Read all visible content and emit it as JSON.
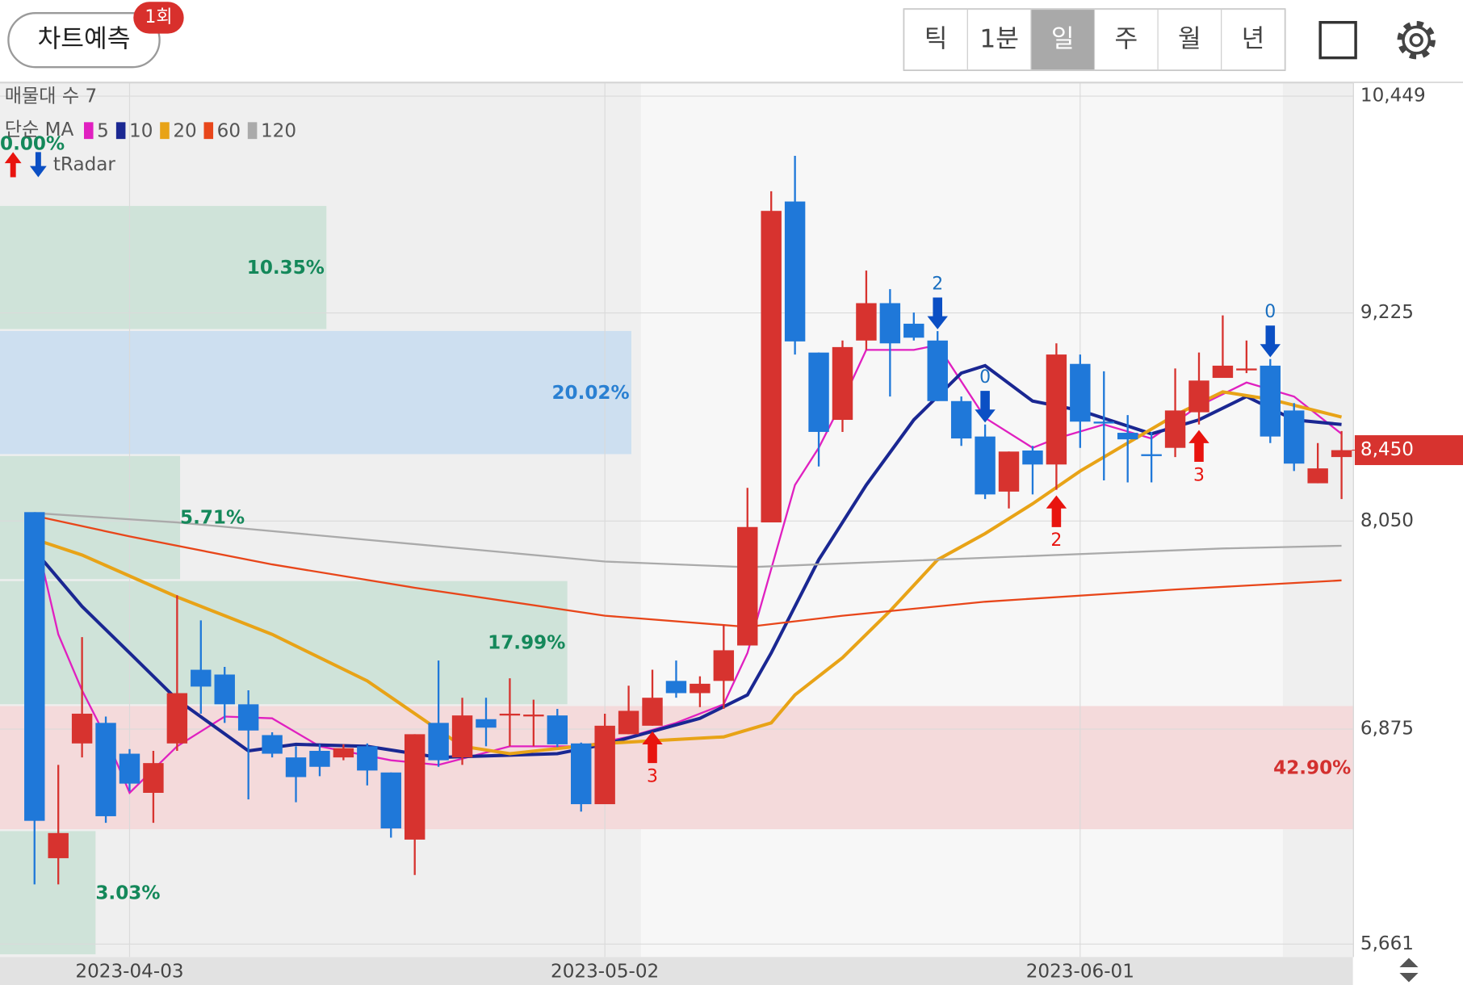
{
  "header": {
    "button": "차트예측",
    "badge": "1회",
    "tabs": [
      "틱",
      "1분",
      "일",
      "주",
      "월",
      "년"
    ],
    "selected_tab": "일"
  },
  "chart_data": {
    "type": "candlestick",
    "categories": [
      null,
      null,
      null,
      null,
      "2023-04-03",
      null,
      null,
      null,
      null,
      null,
      null,
      null,
      null,
      null,
      null,
      null,
      null,
      null,
      null,
      null,
      null,
      null,
      null,
      null,
      "2023-05-02",
      null,
      null,
      null,
      null,
      null,
      null,
      null,
      null,
      null,
      null,
      null,
      null,
      null,
      null,
      null,
      null,
      null,
      null,
      null,
      "2023-06-01",
      null,
      null,
      null,
      null,
      null,
      null,
      null,
      null,
      null,
      null,
      null
    ],
    "open": [
      8100,
      6146,
      6794,
      6910,
      6736,
      6515,
      6794,
      7210,
      7183,
      7015,
      6841,
      6715,
      6752,
      6715,
      6778,
      6630,
      6251,
      6910,
      6715,
      6931,
      6957,
      6952,
      6952,
      6794,
      6451,
      6846,
      6894,
      7147,
      7078,
      7147,
      7347,
      8042,
      9854,
      9001,
      8621,
      9069,
      9280,
      9164,
      9069,
      8727,
      8527,
      8216,
      8448,
      8369,
      8937,
      8611,
      8548,
      8427,
      8463,
      8664,
      8858,
      8906,
      8927,
      8674,
      8263,
      8411
    ],
    "high": [
      8100,
      6673,
      7394,
      6946,
      6762,
      6752,
      7631,
      7489,
      7226,
      7094,
      6857,
      6778,
      6789,
      6789,
      6794,
      6630,
      6846,
      7262,
      7052,
      7052,
      7162,
      7041,
      6989,
      6799,
      6962,
      7120,
      7210,
      7262,
      7173,
      7463,
      8237,
      9912,
      10112,
      9001,
      9069,
      9464,
      9359,
      9227,
      9122,
      8753,
      8595,
      8442,
      8474,
      9053,
      8990,
      8895,
      8648,
      8553,
      8911,
      9001,
      9211,
      9069,
      8964,
      8716,
      8490,
      8558
    ],
    "low": [
      5998,
      5998,
      6715,
      6346,
      6525,
      6346,
      6752,
      6962,
      6910,
      6478,
      6715,
      6462,
      6609,
      6699,
      6557,
      6262,
      6051,
      6662,
      6673,
      6778,
      6778,
      6778,
      6773,
      6409,
      6451,
      6846,
      6894,
      7052,
      6999,
      6989,
      7347,
      8042,
      8990,
      8358,
      8553,
      9016,
      8753,
      9069,
      8727,
      8474,
      8174,
      8121,
      8200,
      8226,
      8463,
      8279,
      8268,
      8268,
      8411,
      8595,
      8858,
      8885,
      8490,
      8332,
      8263,
      8174
    ],
    "close": [
      6357,
      6288,
      6962,
      6383,
      6567,
      6683,
      7078,
      7115,
      7015,
      6867,
      6736,
      6604,
      6662,
      6767,
      6641,
      6314,
      6846,
      6699,
      6952,
      6883,
      6962,
      6957,
      6789,
      6451,
      6894,
      6978,
      7052,
      7078,
      7131,
      7320,
      8016,
      9801,
      9064,
      8553,
      9032,
      9280,
      9053,
      9085,
      8727,
      8516,
      8200,
      8442,
      8369,
      8990,
      8611,
      8605,
      8511,
      8421,
      8674,
      8843,
      8927,
      8911,
      8527,
      8374,
      8347,
      8450
    ],
    "up_color": "#d7332f",
    "down_color": "#1f78d9",
    "ylim": [
      5588,
      10523
    ],
    "yticks": [
      {
        "value": 10449,
        "label": "10,449"
      },
      {
        "value": 9225,
        "label": "9,225"
      },
      {
        "value": 8050,
        "label": "8,050"
      },
      {
        "value": 6875,
        "label": "6,875"
      },
      {
        "value": 5661,
        "label": "5,661"
      }
    ],
    "grid": true,
    "last_price": {
      "value": 8450,
      "label": "8,450"
    },
    "ma_label": "단순 MA",
    "moving_averages": [
      {
        "name": "5",
        "color": "#e020c0",
        "x": [
          0,
          1,
          2,
          3,
          4,
          6,
          8,
          10,
          12,
          15,
          17,
          20,
          23,
          25,
          27,
          29,
          30,
          31,
          32,
          33,
          34,
          35,
          37,
          38,
          40,
          42,
          43,
          45,
          47,
          49,
          51,
          53,
          55
        ],
        "values": [
          7989,
          7410,
          7094,
          6831,
          6515,
          6778,
          6946,
          6936,
          6778,
          6699,
          6673,
          6778,
          6778,
          6831,
          6910,
          7015,
          7305,
          7779,
          8253,
          8463,
          8727,
          9016,
          9016,
          9043,
          8632,
          8463,
          8516,
          8595,
          8516,
          8700,
          8832,
          8753,
          8542
        ]
      },
      {
        "name": "10",
        "color": "#1a2792",
        "x": [
          0,
          2,
          4,
          6,
          9,
          11,
          14,
          17,
          22,
          24,
          28,
          30,
          31,
          33,
          35,
          37,
          39,
          40,
          42,
          44,
          47,
          49,
          51,
          53,
          55
        ],
        "values": [
          7884,
          7568,
          7305,
          7041,
          6752,
          6789,
          6778,
          6715,
          6736,
          6789,
          6936,
          7068,
          7305,
          7831,
          8253,
          8621,
          8885,
          8927,
          8727,
          8674,
          8542,
          8621,
          8753,
          8621,
          8595
        ]
      },
      {
        "name": "20",
        "color": "#e8a317",
        "x": [
          0,
          2,
          6,
          10,
          14,
          18,
          20,
          24,
          29,
          31,
          32,
          34,
          36,
          38,
          40,
          42,
          44,
          46,
          48,
          50,
          52,
          55
        ],
        "values": [
          7947,
          7858,
          7621,
          7410,
          7147,
          6778,
          6736,
          6794,
          6831,
          6910,
          7068,
          7278,
          7542,
          7831,
          7979,
          8147,
          8332,
          8490,
          8648,
          8779,
          8737,
          8637
        ]
      },
      {
        "name": "60",
        "color": "#e8461a",
        "x": [
          0,
          4,
          10,
          16,
          24,
          30,
          34,
          40,
          48,
          55
        ],
        "values": [
          8079,
          7963,
          7805,
          7673,
          7515,
          7452,
          7515,
          7594,
          7663,
          7715
        ]
      },
      {
        "name": "120",
        "color": "#aaaaaa",
        "x": [
          0,
          6,
          24,
          30,
          40,
          50,
          55
        ],
        "values": [
          8095,
          8042,
          7821,
          7789,
          7842,
          7895,
          7910
        ]
      }
    ],
    "volume_profile": {
      "label": "매물대 수 7",
      "edges": [
        5593,
        6299,
        7005,
        7711,
        8417,
        9123,
        9829,
        10535
      ],
      "values": [
        3.03,
        42.9,
        17.99,
        5.71,
        20.02,
        10.35,
        0
      ],
      "value_labels": [
        "3.03%",
        "42.90%",
        "17.99%",
        "5.71%",
        "20.02%",
        "10.35%",
        "0.00%"
      ],
      "colors": [
        "#cfe3d9",
        "#f4dadb",
        "#cfe3d9",
        "#cfe3d9",
        "#cddff0",
        "#cfe3d9",
        "#cfe3d9"
      ],
      "label_colors": [
        "#14885a",
        "#d3302f",
        "#14885a",
        "#14885a",
        "#2a80d2",
        "#14885a",
        "#14885a"
      ]
    },
    "signals": {
      "label": "tRadar",
      "buy_color": "#e8140f",
      "sell_color": "#0b4fc4",
      "buy": [
        null,
        null,
        null,
        null,
        null,
        null,
        null,
        null,
        null,
        null,
        null,
        null,
        null,
        null,
        null,
        null,
        null,
        null,
        null,
        null,
        null,
        null,
        null,
        null,
        null,
        null,
        3,
        null,
        null,
        null,
        null,
        null,
        null,
        null,
        null,
        null,
        null,
        null,
        null,
        null,
        null,
        null,
        null,
        2,
        null,
        null,
        null,
        null,
        null,
        3,
        null,
        null,
        null,
        null,
        null,
        null
      ],
      "sell": [
        null,
        null,
        null,
        null,
        null,
        null,
        null,
        null,
        null,
        null,
        null,
        null,
        null,
        null,
        null,
        null,
        null,
        null,
        null,
        null,
        null,
        null,
        null,
        null,
        null,
        null,
        null,
        null,
        null,
        null,
        null,
        null,
        null,
        null,
        null,
        null,
        null,
        null,
        2,
        null,
        0,
        null,
        null,
        null,
        null,
        null,
        null,
        null,
        null,
        null,
        null,
        null,
        0,
        null,
        null,
        null
      ]
    }
  }
}
